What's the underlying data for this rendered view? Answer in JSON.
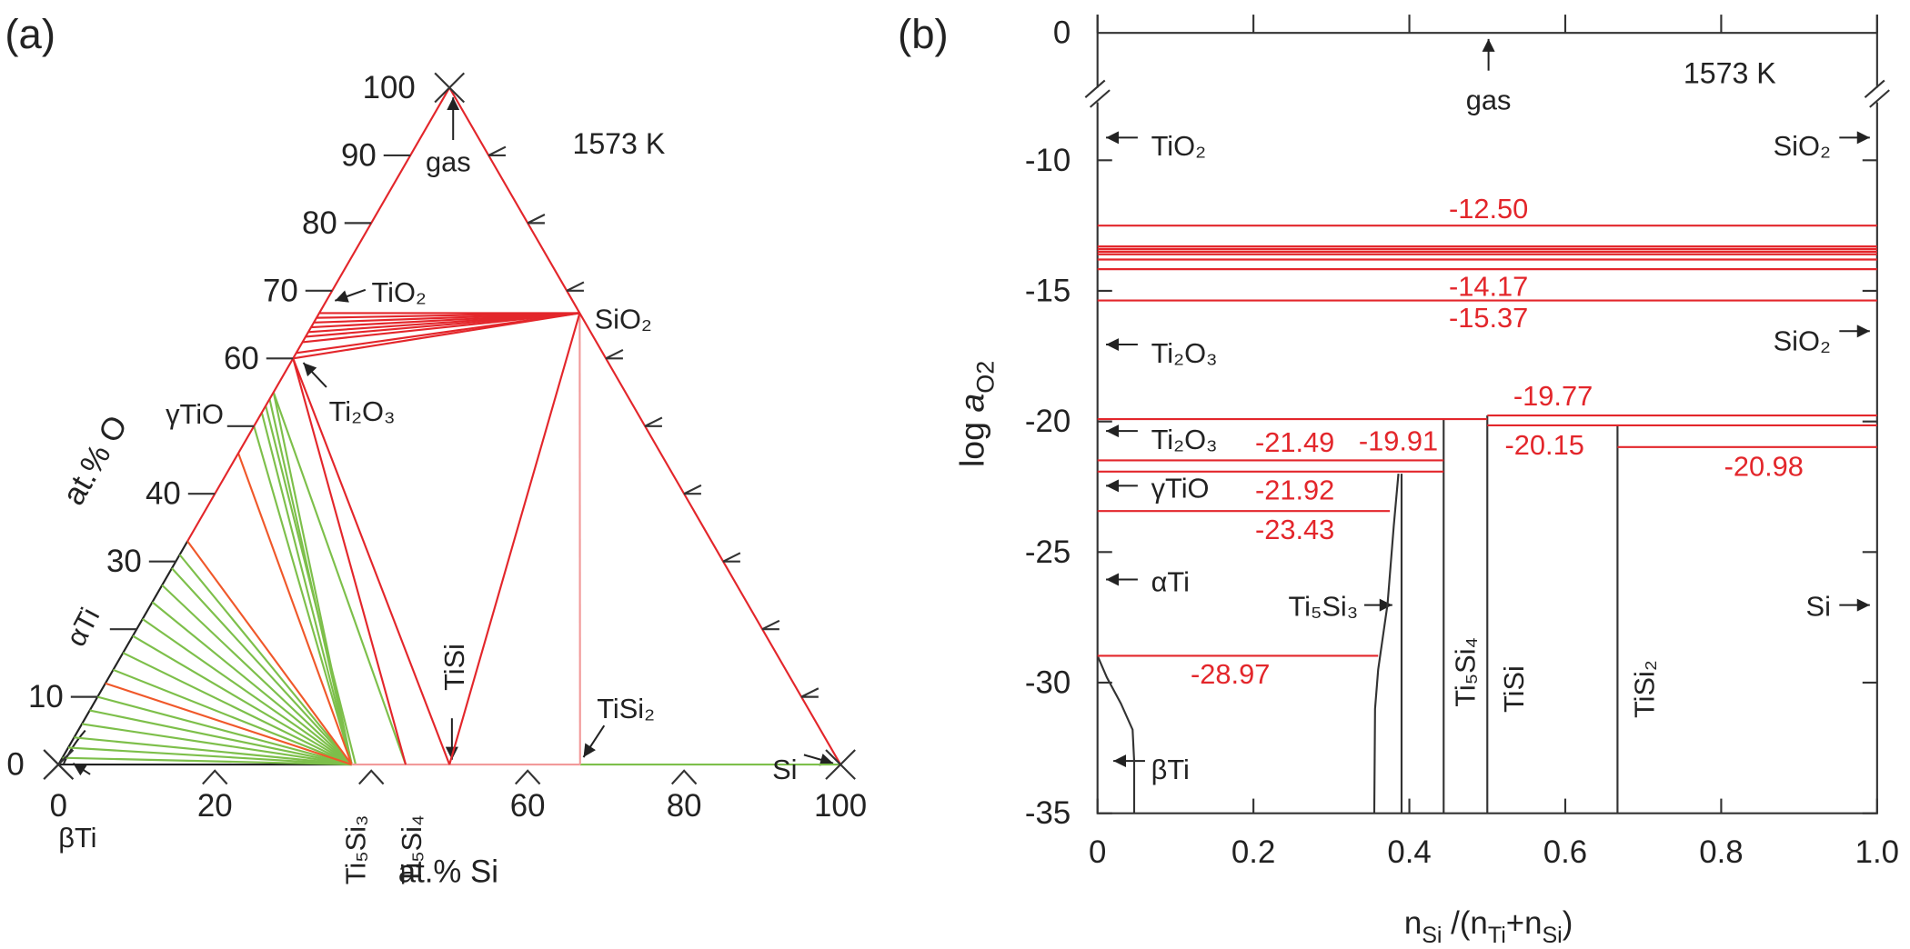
{
  "chart_data": [
    {
      "type": "ternary",
      "title": "(a)",
      "temperature": "1573 K",
      "xlabel": "at.% Si",
      "ylabel": "at.% O",
      "si_ticks": [
        0,
        20,
        40,
        60,
        80,
        100
      ],
      "si_tick_labels": [
        0,
        20,
        60,
        80,
        100
      ],
      "o_ticks": [
        0,
        10,
        20,
        30,
        40,
        50,
        60,
        70,
        80,
        90,
        100
      ],
      "o_tick_labels": [
        0,
        10,
        30,
        40,
        60,
        70,
        80,
        90,
        100
      ],
      "phase_labels": [
        "gas",
        "TiO₂",
        "SiO₂",
        "Ti₂O₃",
        "γTiO",
        "αTi",
        "TiSi",
        "TiSi₂",
        "Si",
        "βTi",
        "Ti₅Si₃",
        "Ti₅Si₄"
      ],
      "lines": [
        {
          "color": "#222222",
          "segments": [
            [
              0,
              0,
              0,
              33
            ],
            [
              0,
              0,
              37.5,
              0
            ]
          ]
        },
        {
          "color": "#7dbf4a",
          "segments": [
            [
              66.7,
              0,
              100,
              0
            ],
            [
              0,
              55,
              37.5,
              0
            ],
            [
              0,
              54,
              37.5,
              0
            ],
            [
              0,
              53,
              38,
              0
            ],
            [
              0,
              52,
              37.5,
              0
            ],
            [
              0,
              50,
              37.5,
              0
            ],
            [
              0,
              55,
              44.4,
              0
            ],
            [
              0,
              1,
              37.5,
              0
            ],
            [
              0,
              2.5,
              37.5,
              0
            ],
            [
              0,
              4,
              37.5,
              0
            ],
            [
              0,
              6,
              37.5,
              0
            ],
            [
              0,
              8,
              37.5,
              0
            ],
            [
              0,
              10,
              37.5,
              0
            ],
            [
              0,
              14,
              37.5,
              0
            ],
            [
              0,
              16.5,
              37.5,
              0
            ],
            [
              0,
              19,
              37.5,
              0
            ],
            [
              0,
              21.5,
              37.5,
              0
            ],
            [
              0,
              24,
              37.5,
              0
            ],
            [
              0,
              26.5,
              37.5,
              0
            ],
            [
              0,
              29,
              37.5,
              0
            ],
            [
              0,
              31,
              37.5,
              0
            ]
          ]
        },
        {
          "color": "#f0582a",
          "segments": [
            [
              0,
              33,
              37.5,
              0
            ],
            [
              0,
              46,
              37.5,
              0
            ],
            [
              0,
              12,
              37.5,
              0
            ]
          ]
        },
        {
          "color": "#f29a9a",
          "segments": [
            [
              37.5,
              0,
              66.7,
              0
            ],
            [
              33.3,
              66.7,
              66.7,
              0
            ]
          ]
        },
        {
          "color": "#e3262b",
          "segments": [
            [
              0,
              33,
              0,
              100
            ],
            [
              100,
              0,
              0,
              100
            ],
            [
              0,
              66.7,
              33.3,
              66.7
            ],
            [
              0,
              66,
              33.3,
              66.7
            ],
            [
              0,
              65.3,
              33.3,
              66.7
            ],
            [
              0,
              64.6,
              33.3,
              66.7
            ],
            [
              0,
              63.9,
              33.3,
              66.7
            ],
            [
              0,
              63.2,
              33.3,
              66.7
            ],
            [
              0,
              62.4,
              33.3,
              66.7
            ],
            [
              0,
              60,
              33.3,
              66.7
            ],
            [
              0,
              60.8,
              33.3,
              66.7
            ],
            [
              0,
              60,
              50,
              0
            ],
            [
              0,
              60,
              44.4,
              0
            ],
            [
              33.3,
              66.7,
              50,
              0
            ]
          ]
        }
      ]
    },
    {
      "type": "predominance",
      "title": "(b)",
      "temperature": "1573 K",
      "xlabel": [
        {
          "text": "n"
        },
        {
          "text": "Si",
          "sub": true
        },
        {
          "text": " /(n"
        },
        {
          "text": "Ti",
          "sub": true
        },
        {
          "text": "+n"
        },
        {
          "text": "Si",
          "sub": true
        },
        {
          "text": ")"
        }
      ],
      "ylabel": [
        {
          "text": "log "
        },
        {
          "text": "a",
          "italic": true
        },
        {
          "text": "O2",
          "sub": true
        }
      ],
      "xlim": [
        0,
        1
      ],
      "xticks": [
        0,
        0.2,
        0.4,
        0.6,
        0.8,
        {
          "value": 1,
          "label": "1.0"
        }
      ],
      "ylim": [
        -35,
        -7.5
      ],
      "yticks": [
        -35,
        -30,
        -25,
        -20,
        -15,
        -10
      ],
      "top_yticks": [
        0
      ],
      "level_color": "#e3262b",
      "boundary_color": "#333333",
      "levels": [
        {
          "value": -12.5,
          "label": "-12.50",
          "x": [
            0,
            1
          ]
        },
        {
          "value": -13.3,
          "x": [
            0,
            1
          ]
        },
        {
          "value": -13.4,
          "x": [
            0,
            1
          ]
        },
        {
          "value": -13.5,
          "x": [
            0,
            1
          ]
        },
        {
          "value": -13.6,
          "x": [
            0,
            1
          ]
        },
        {
          "value": -13.8,
          "x": [
            0,
            1
          ]
        },
        {
          "value": -14.17,
          "label": "-14.17",
          "x": [
            0,
            1
          ]
        },
        {
          "value": -15.37,
          "label": "-15.37",
          "x": [
            0,
            1
          ]
        },
        {
          "value": -19.77,
          "label": "-19.77",
          "x": [
            0.5,
            1
          ]
        },
        {
          "value": -19.91,
          "label": "-19.91",
          "x": [
            0,
            0.5
          ]
        },
        {
          "value": -20.15,
          "label": "-20.15",
          "x": [
            0.5,
            1
          ]
        },
        {
          "value": -20.98,
          "label": "-20.98",
          "x": [
            0.667,
            1
          ]
        },
        {
          "value": -21.49,
          "label": "-21.49",
          "x": [
            0,
            0.444
          ]
        },
        {
          "value": -21.92,
          "label": "-21.92",
          "x": [
            0,
            0.444
          ]
        },
        {
          "value": -23.43,
          "label": "-23.43",
          "x": [
            0,
            0.375
          ]
        },
        {
          "value": -28.97,
          "label": "-28.97",
          "x": [
            0,
            0.36
          ]
        }
      ],
      "boundaries": [
        {
          "x": [
            0,
            0.012,
            0.03,
            0.045,
            0.047,
            0.047
          ],
          "y": [
            -28.97,
            -29.8,
            -30.8,
            -31.8,
            -33,
            -35
          ]
        },
        {
          "x": [
            0.355,
            0.356,
            0.36,
            0.372,
            0.38,
            0.386
          ],
          "y": [
            -35,
            -31,
            -29.5,
            -27,
            -24,
            -22
          ]
        },
        {
          "x": [
            0.39,
            0.39
          ],
          "y": [
            -35,
            -22
          ]
        },
        {
          "x": [
            0.444,
            0.444
          ],
          "y": [
            -35,
            -19.91
          ]
        },
        {
          "x": [
            0.5,
            0.5
          ],
          "y": [
            -35,
            -19.77
          ]
        },
        {
          "x": [
            0.667,
            0.667
          ],
          "y": [
            -35,
            -20.15
          ]
        }
      ],
      "phase_labels": [
        "gas",
        "TiO₂",
        "Ti₂O₃",
        "Ti₂O₃",
        "γTiO",
        "αTi",
        "βTi",
        "SiO₂",
        "SiO₂",
        "Si",
        "Ti₅Si₃",
        "Ti₅Si₄",
        "TiSi",
        "TiSi₂"
      ]
    }
  ]
}
